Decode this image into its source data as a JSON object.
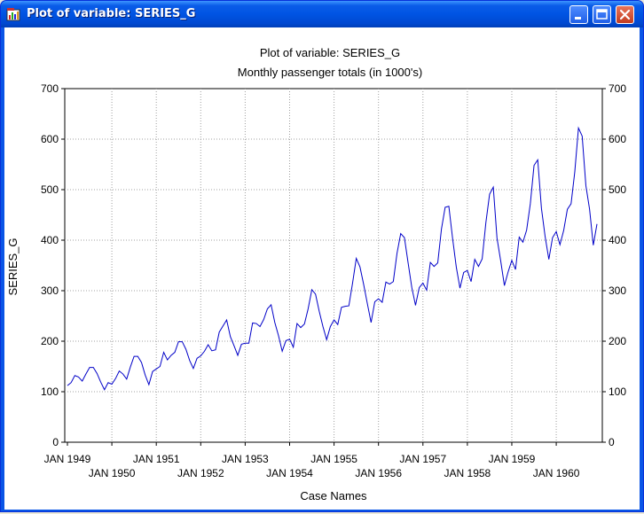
{
  "window": {
    "title": "Plot of variable: SERIES_G"
  },
  "icons": {
    "app": "chart-app-icon",
    "minimize": "minimize-icon",
    "maximize": "maximize-icon",
    "close": "close-icon"
  },
  "colors": {
    "series": "#0000c8",
    "grid": "#a0a0a0",
    "titlebar": "#0054e3",
    "close_button": "#d2492a"
  },
  "chart_data": {
    "type": "line",
    "title": "Plot of variable: SERIES_G",
    "subtitle": "Monthly passenger totals (in 1000's)",
    "xlabel": "Case Names",
    "ylabel": "SERIES_G",
    "ylim": [
      0,
      700
    ],
    "yticks": [
      0,
      100,
      200,
      300,
      400,
      500,
      600,
      700
    ],
    "grid": true,
    "right_axis": true,
    "xtick_labels_row1": [
      "JAN 1949",
      "JAN 1951",
      "JAN 1953",
      "JAN 1955",
      "JAN 1957",
      "JAN 1959"
    ],
    "xtick_labels_row2": [
      "JAN 1950",
      "JAN 1952",
      "JAN 1954",
      "JAN 1956",
      "JAN 1958",
      "JAN 1960"
    ],
    "series": [
      {
        "values": [
          112,
          118,
          132,
          129,
          121,
          135,
          148,
          148,
          136,
          119,
          104,
          118,
          115,
          126,
          141,
          135,
          125,
          149,
          170,
          170,
          158,
          133,
          114,
          140,
          145,
          150,
          178,
          163,
          172,
          178,
          199,
          199,
          184,
          162,
          146,
          166,
          171,
          180,
          193,
          181,
          183,
          218,
          230,
          242,
          209,
          191,
          172,
          194,
          196,
          196,
          236,
          235,
          229,
          243,
          264,
          272,
          237,
          211,
          180,
          201,
          204,
          188,
          235,
          227,
          234,
          264,
          302,
          293,
          259,
          229,
          203,
          229,
          242,
          233,
          267,
          269,
          270,
          315,
          364,
          347,
          312,
          274,
          237,
          278,
          284,
          277,
          317,
          313,
          318,
          374,
          413,
          405,
          355,
          306,
          271,
          306,
          315,
          301,
          356,
          348,
          355,
          422,
          465,
          467,
          404,
          347,
          305,
          336,
          340,
          318,
          362,
          348,
          363,
          435,
          491,
          505,
          404,
          359,
          310,
          337,
          360,
          342,
          406,
          396,
          420,
          472,
          548,
          559,
          463,
          407,
          362,
          405,
          417,
          391,
          419,
          461,
          472,
          535,
          622,
          606,
          508,
          461,
          390,
          432
        ]
      }
    ]
  }
}
